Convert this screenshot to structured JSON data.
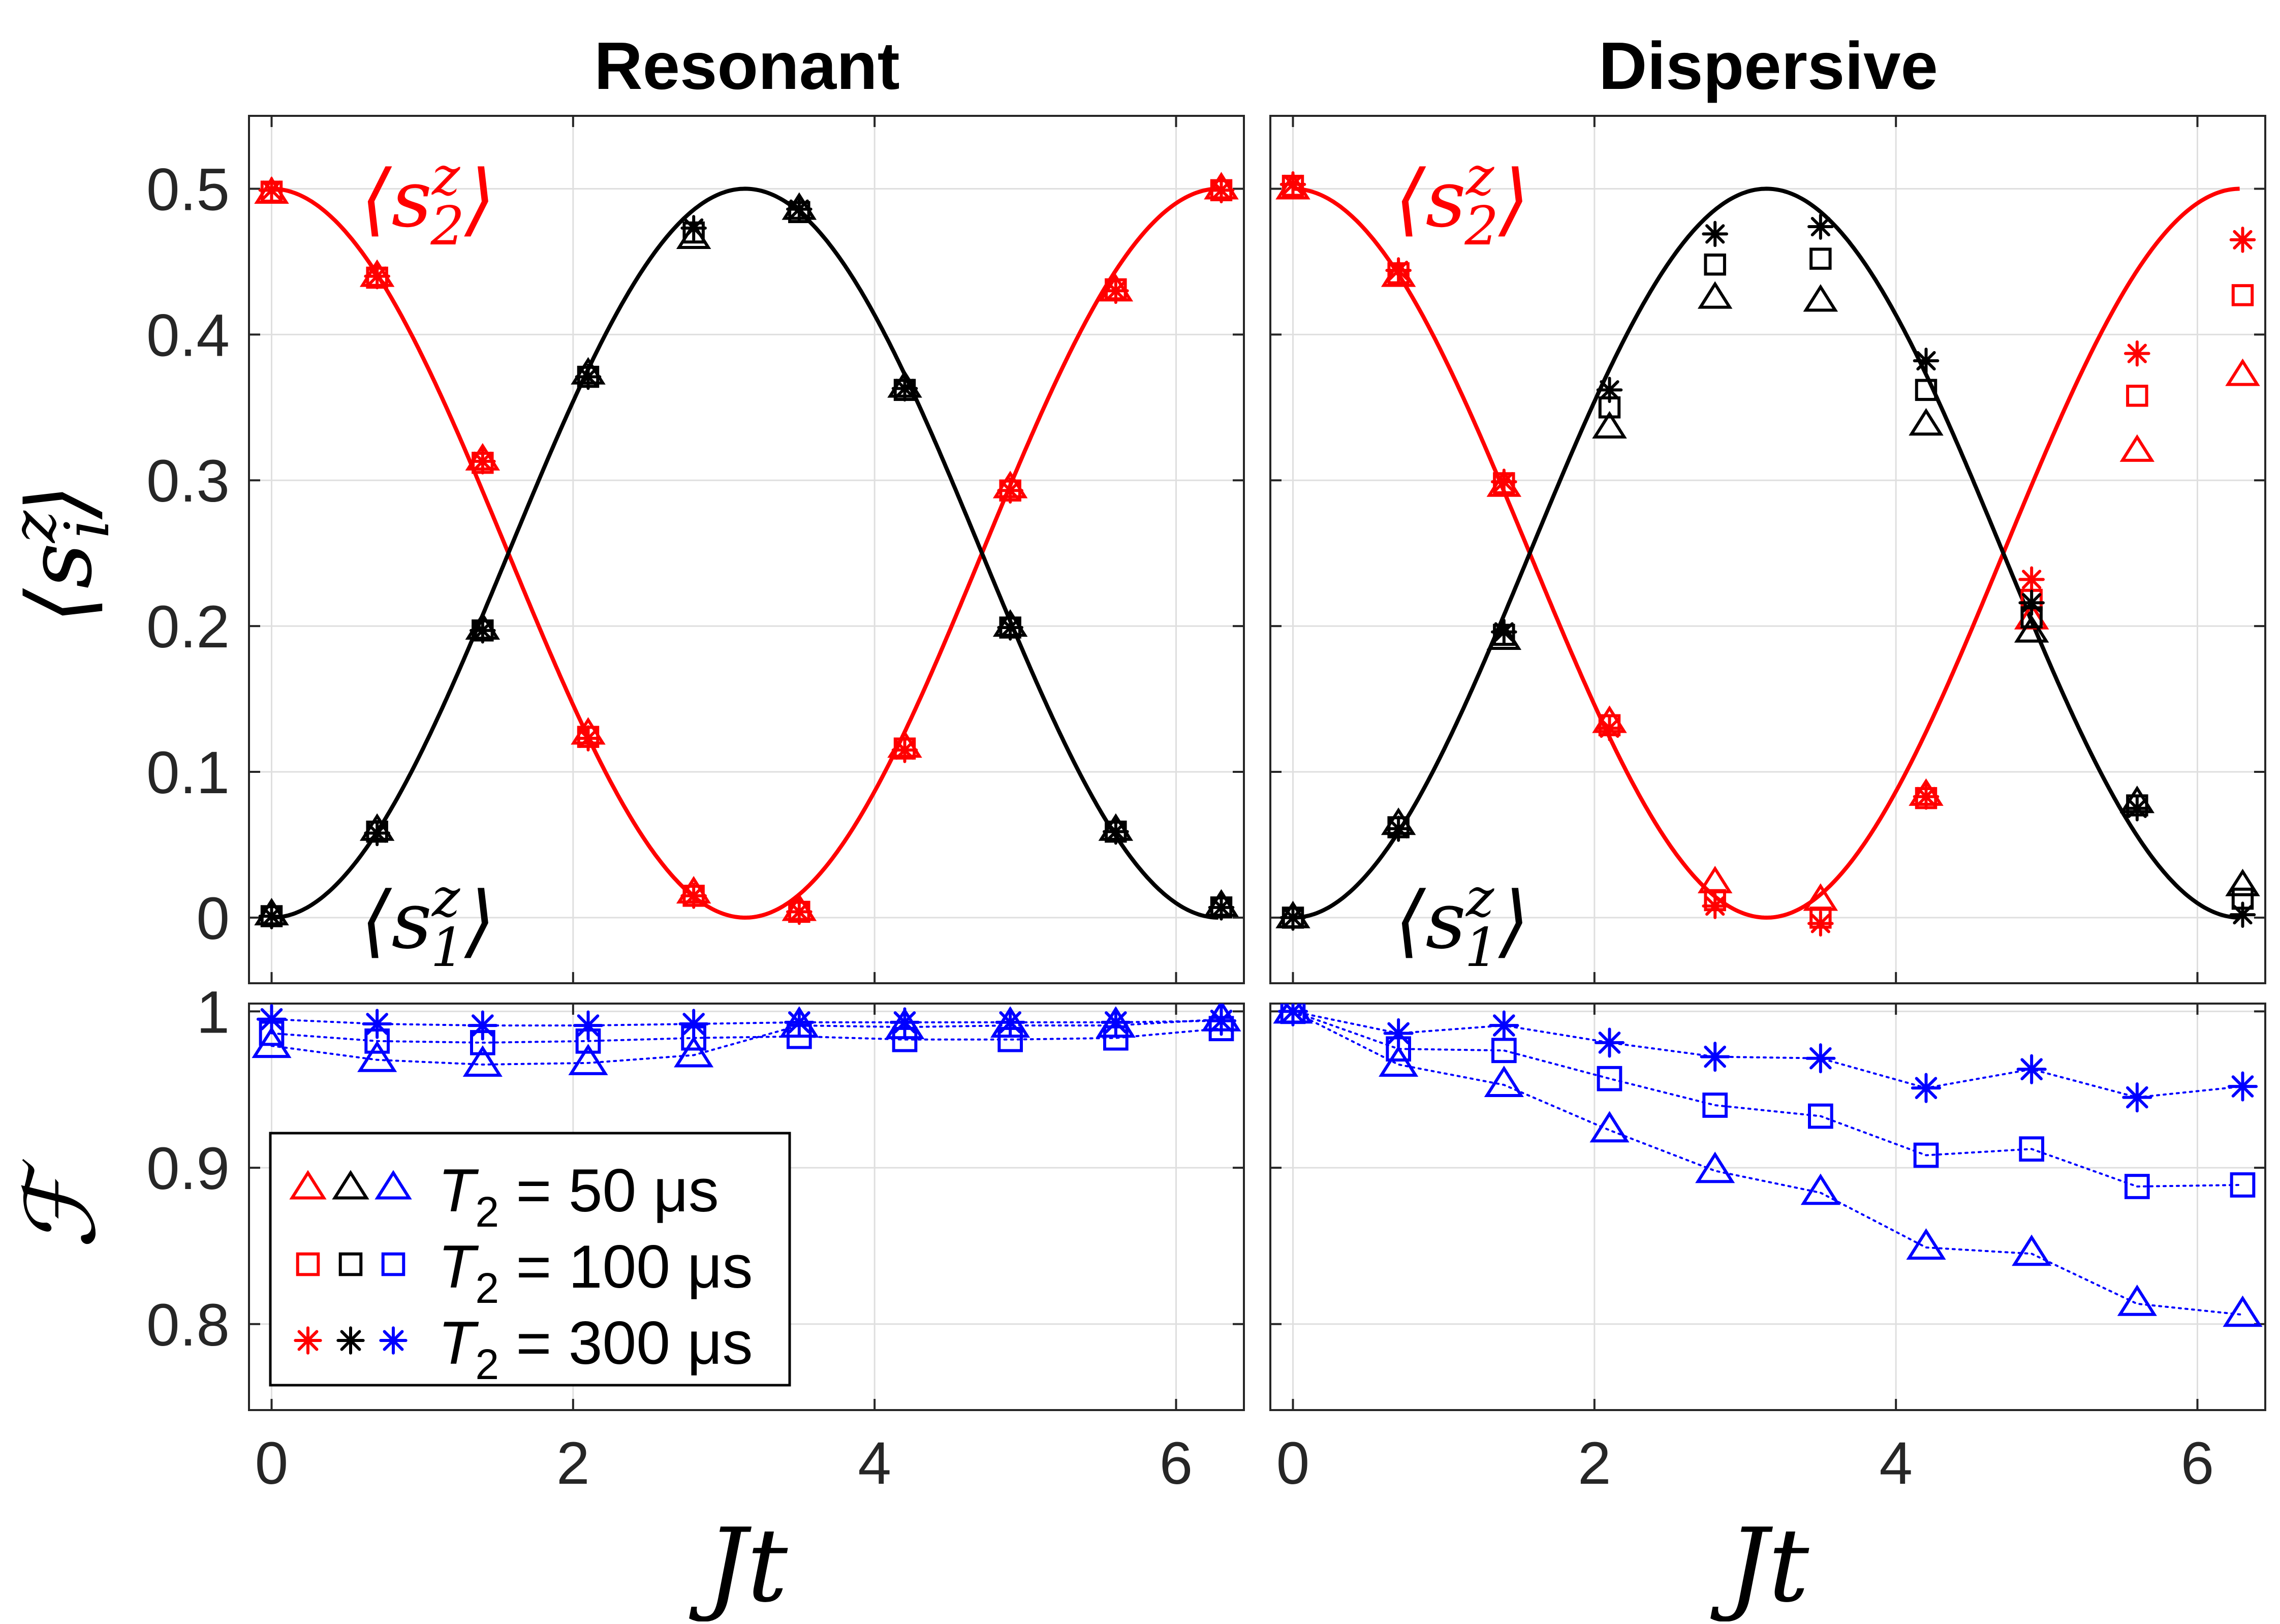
{
  "colors": {
    "s2": "#ff0000",
    "s1": "#000000",
    "fidelity": "#0000ff"
  },
  "chart_data": [
    {
      "type": "line",
      "id": "resonant-spin",
      "title": "Resonant",
      "xlim": [
        -0.15,
        6.45
      ],
      "ylim": [
        -0.045,
        0.55
      ],
      "x_ticks": [
        "0",
        "2",
        "4",
        "6"
      ],
      "y_ticks": [
        "0",
        "0.1",
        "0.2",
        "0.3",
        "0.4",
        "0.5"
      ],
      "ylabel": "⟨s_i^z⟩",
      "annotations": [
        {
          "text": "⟨s₂ᶻ⟩",
          "color": "#ff0000"
        },
        {
          "text": "⟨s₁ᶻ⟩",
          "color": "#000000"
        }
      ],
      "curves": [
        {
          "name": "⟨s₂ᶻ⟩ theory",
          "color": "#ff0000",
          "formula": "0.5*cos(t/2)^2",
          "t_range": [
            0,
            6.28
          ]
        },
        {
          "name": "⟨s₁ᶻ⟩ theory",
          "color": "#000000",
          "formula": "0.5*sin(t/2)^2",
          "t_range": [
            0,
            6.28
          ]
        }
      ],
      "x": [
        0,
        0.7,
        1.4,
        2.1,
        2.8,
        3.5,
        4.2,
        4.9,
        5.6,
        6.3
      ],
      "series": [
        {
          "name": "⟨s₂ᶻ⟩ T2=50µs",
          "color": "#ff0000",
          "marker": "triangle",
          "values": [
            0.497,
            0.44,
            0.314,
            0.126,
            0.017,
            0.005,
            0.117,
            0.295,
            0.43,
            0.5
          ]
        },
        {
          "name": "⟨s₂ᶻ⟩ T2=100µs",
          "color": "#ff0000",
          "marker": "square",
          "values": [
            0.498,
            0.439,
            0.312,
            0.124,
            0.015,
            0.004,
            0.116,
            0.293,
            0.431,
            0.499
          ]
        },
        {
          "name": "⟨s₂ᶻ⟩ T2=300µs",
          "color": "#ff0000",
          "marker": "asterisk",
          "values": [
            0.499,
            0.44,
            0.313,
            0.123,
            0.015,
            0.004,
            0.115,
            0.293,
            0.43,
            0.499
          ]
        },
        {
          "name": "⟨s₁ᶻ⟩ T2=50µs",
          "color": "#000000",
          "marker": "triangle",
          "values": [
            0.002,
            0.06,
            0.198,
            0.373,
            0.466,
            0.486,
            0.364,
            0.2,
            0.06,
            0.008
          ]
        },
        {
          "name": "⟨s₁ᶻ⟩ T2=100µs",
          "color": "#000000",
          "marker": "square",
          "values": [
            0.001,
            0.059,
            0.197,
            0.371,
            0.47,
            0.484,
            0.362,
            0.199,
            0.059,
            0.007
          ]
        },
        {
          "name": "⟨s₁ᶻ⟩ T2=300µs",
          "color": "#000000",
          "marker": "asterisk",
          "values": [
            0.001,
            0.058,
            0.197,
            0.371,
            0.473,
            0.486,
            0.363,
            0.199,
            0.059,
            0.007
          ]
        }
      ]
    },
    {
      "type": "line",
      "id": "dispersive-spin",
      "title": "Dispersive",
      "xlim": [
        -0.15,
        6.45
      ],
      "ylim": [
        -0.045,
        0.55
      ],
      "x_ticks": [
        "0",
        "2",
        "4",
        "6"
      ],
      "y_ticks": [],
      "annotations": [
        {
          "text": "⟨s₂ᶻ⟩",
          "color": "#ff0000"
        },
        {
          "text": "⟨s₁ᶻ⟩",
          "color": "#000000"
        }
      ],
      "curves": [
        {
          "name": "⟨s₂ᶻ⟩ theory",
          "color": "#ff0000",
          "formula": "0.5*cos(t/2)^2",
          "t_range": [
            0,
            6.28
          ]
        },
        {
          "name": "⟨s₁ᶻ⟩ theory",
          "color": "#000000",
          "formula": "0.5*sin(t/2)^2",
          "t_range": [
            0,
            6.28
          ]
        }
      ],
      "x": [
        0,
        0.7,
        1.4,
        2.1,
        2.8,
        3.5,
        4.2,
        4.9,
        5.6,
        6.3
      ],
      "series": [
        {
          "name": "⟨s₂ᶻ⟩ T2=50µs",
          "color": "#ff0000",
          "marker": "triangle",
          "values": [
            0.5,
            0.44,
            0.296,
            0.134,
            0.024,
            0.012,
            0.084,
            0.205,
            0.32,
            0.372
          ]
        },
        {
          "name": "⟨s₂ᶻ⟩ T2=100µs",
          "color": "#ff0000",
          "marker": "square",
          "values": [
            0.502,
            0.442,
            0.298,
            0.132,
            0.012,
            0.0,
            0.082,
            0.218,
            0.358,
            0.427
          ]
        },
        {
          "name": "⟨s₂ᶻ⟩ T2=300µs",
          "color": "#ff0000",
          "marker": "asterisk",
          "values": [
            0.503,
            0.444,
            0.299,
            0.13,
            0.008,
            -0.004,
            0.083,
            0.232,
            0.387,
            0.465
          ]
        },
        {
          "name": "⟨s₁ᶻ⟩ T2=50µs",
          "color": "#000000",
          "marker": "triangle",
          "values": [
            0.0,
            0.064,
            0.191,
            0.336,
            0.425,
            0.423,
            0.338,
            0.196,
            0.079,
            0.022
          ]
        },
        {
          "name": "⟨s₁ᶻ⟩ T2=100µs",
          "color": "#000000",
          "marker": "square",
          "values": [
            0.0,
            0.062,
            0.194,
            0.35,
            0.448,
            0.452,
            0.362,
            0.206,
            0.077,
            0.013
          ]
        },
        {
          "name": "⟨s₁ᶻ⟩ T2=300µs",
          "color": "#000000",
          "marker": "asterisk",
          "values": [
            0.0,
            0.061,
            0.196,
            0.362,
            0.469,
            0.474,
            0.382,
            0.216,
            0.075,
            0.002
          ]
        }
      ]
    },
    {
      "type": "line",
      "id": "resonant-fidelity",
      "xlim": [
        -0.15,
        6.45
      ],
      "ylim": [
        0.745,
        1.005
      ],
      "x_ticks": [
        "0",
        "2",
        "4",
        "6"
      ],
      "y_ticks": [
        "0.8",
        "0.9",
        "1"
      ],
      "xlabel": "Jt",
      "ylabel": "ℱ",
      "x": [
        0,
        0.7,
        1.4,
        2.1,
        2.8,
        3.5,
        4.2,
        4.9,
        5.6,
        6.3
      ],
      "series": [
        {
          "name": "T2 = 50 µs",
          "color": "#0000ff",
          "marker": "triangle",
          "values": [
            0.978,
            0.969,
            0.966,
            0.967,
            0.972,
            0.991,
            0.99,
            0.991,
            0.991,
            0.995
          ]
        },
        {
          "name": "T2 = 100 µs",
          "color": "#0000ff",
          "marker": "square",
          "values": [
            0.986,
            0.981,
            0.98,
            0.981,
            0.983,
            0.984,
            0.982,
            0.982,
            0.983,
            0.989
          ]
        },
        {
          "name": "T2 = 300 µs",
          "color": "#0000ff",
          "marker": "asterisk",
          "values": [
            0.995,
            0.992,
            0.991,
            0.991,
            0.992,
            0.993,
            0.993,
            0.993,
            0.993,
            0.994
          ]
        }
      ]
    },
    {
      "type": "line",
      "id": "dispersive-fidelity",
      "xlim": [
        -0.15,
        6.45
      ],
      "ylim": [
        0.745,
        1.005
      ],
      "x_ticks": [
        "0",
        "2",
        "4",
        "6"
      ],
      "y_ticks": [],
      "xlabel": "Jt",
      "x": [
        0,
        0.7,
        1.4,
        2.1,
        2.8,
        3.5,
        4.2,
        4.9,
        5.6,
        6.3
      ],
      "series": [
        {
          "name": "T2 = 50 µs",
          "color": "#0000ff",
          "marker": "triangle",
          "values": [
            1.0,
            0.966,
            0.953,
            0.924,
            0.898,
            0.884,
            0.849,
            0.845,
            0.813,
            0.806
          ]
        },
        {
          "name": "T2 = 100 µs",
          "color": "#0000ff",
          "marker": "square",
          "values": [
            1.0,
            0.976,
            0.975,
            0.957,
            0.94,
            0.933,
            0.908,
            0.912,
            0.888,
            0.889
          ]
        },
        {
          "name": "T2 = 300 µs",
          "color": "#0000ff",
          "marker": "asterisk",
          "values": [
            1.0,
            0.986,
            0.991,
            0.98,
            0.971,
            0.97,
            0.951,
            0.963,
            0.945,
            0.952
          ]
        }
      ]
    }
  ],
  "legend": {
    "placement": "bottom-left of Resonant fidelity panel",
    "entries": [
      {
        "marker": "triangle",
        "var": "T",
        "sub": "2",
        "rest": " = 50 μs",
        "colors": [
          "#ff0000",
          "#000000",
          "#0000ff"
        ]
      },
      {
        "marker": "square",
        "var": "T",
        "sub": "2",
        "rest": " = 100 μs",
        "colors": [
          "#ff0000",
          "#000000",
          "#0000ff"
        ]
      },
      {
        "marker": "asterisk",
        "var": "T",
        "sub": "2",
        "rest": " = 300 μs",
        "colors": [
          "#ff0000",
          "#000000",
          "#0000ff"
        ]
      }
    ]
  }
}
